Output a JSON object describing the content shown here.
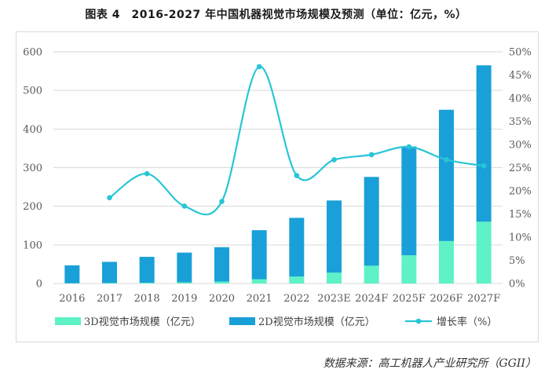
{
  "title": "图表 4　2016-2027 年中国机器视觉市场规模及预测（单位：亿元，%）",
  "source": "数据来源：高工机器人产业研究所（GGII）",
  "colors": {
    "bar3d": "#5ef2c6",
    "bar2d": "#1aa0d8",
    "line": "#28c5d6",
    "grid": "#d9d9d9"
  },
  "chart_data": {
    "type": "bar",
    "categories": [
      "2016",
      "2017",
      "2018",
      "2019",
      "2020",
      "2021",
      "2022",
      "2023E",
      "2024F",
      "2025F",
      "2026F",
      "2027F"
    ],
    "series": [
      {
        "name": "3D视觉市场规模（亿元）",
        "kind": "stacked-bar",
        "values": [
          0.8,
          1.2,
          2,
          3,
          5,
          11,
          18,
          28,
          46,
          73,
          110,
          160
        ]
      },
      {
        "name": "2D视觉市场规模（亿元）",
        "kind": "stacked-bar",
        "values": [
          46.2,
          54.8,
          67,
          77,
          89,
          127,
          152,
          187,
          230,
          282,
          340,
          405
        ]
      },
      {
        "name": "增长率（%）",
        "kind": "line",
        "axis": "right",
        "values": [
          null,
          18.5,
          23.7,
          16.7,
          17.7,
          46.8,
          23.3,
          26.7,
          27.8,
          29.5,
          26.7,
          25.4
        ]
      }
    ],
    "y_left": {
      "min": 0,
      "max": 600,
      "ticks": [
        "0",
        "100",
        "200",
        "300",
        "400",
        "500",
        "600"
      ]
    },
    "y_right": {
      "min": 0,
      "max": 50,
      "ticks": [
        "0%",
        "5%",
        "10%",
        "15%",
        "20%",
        "25%",
        "30%",
        "35%",
        "40%",
        "45%",
        "50%"
      ]
    },
    "legend_position": "bottom",
    "grid": true
  }
}
